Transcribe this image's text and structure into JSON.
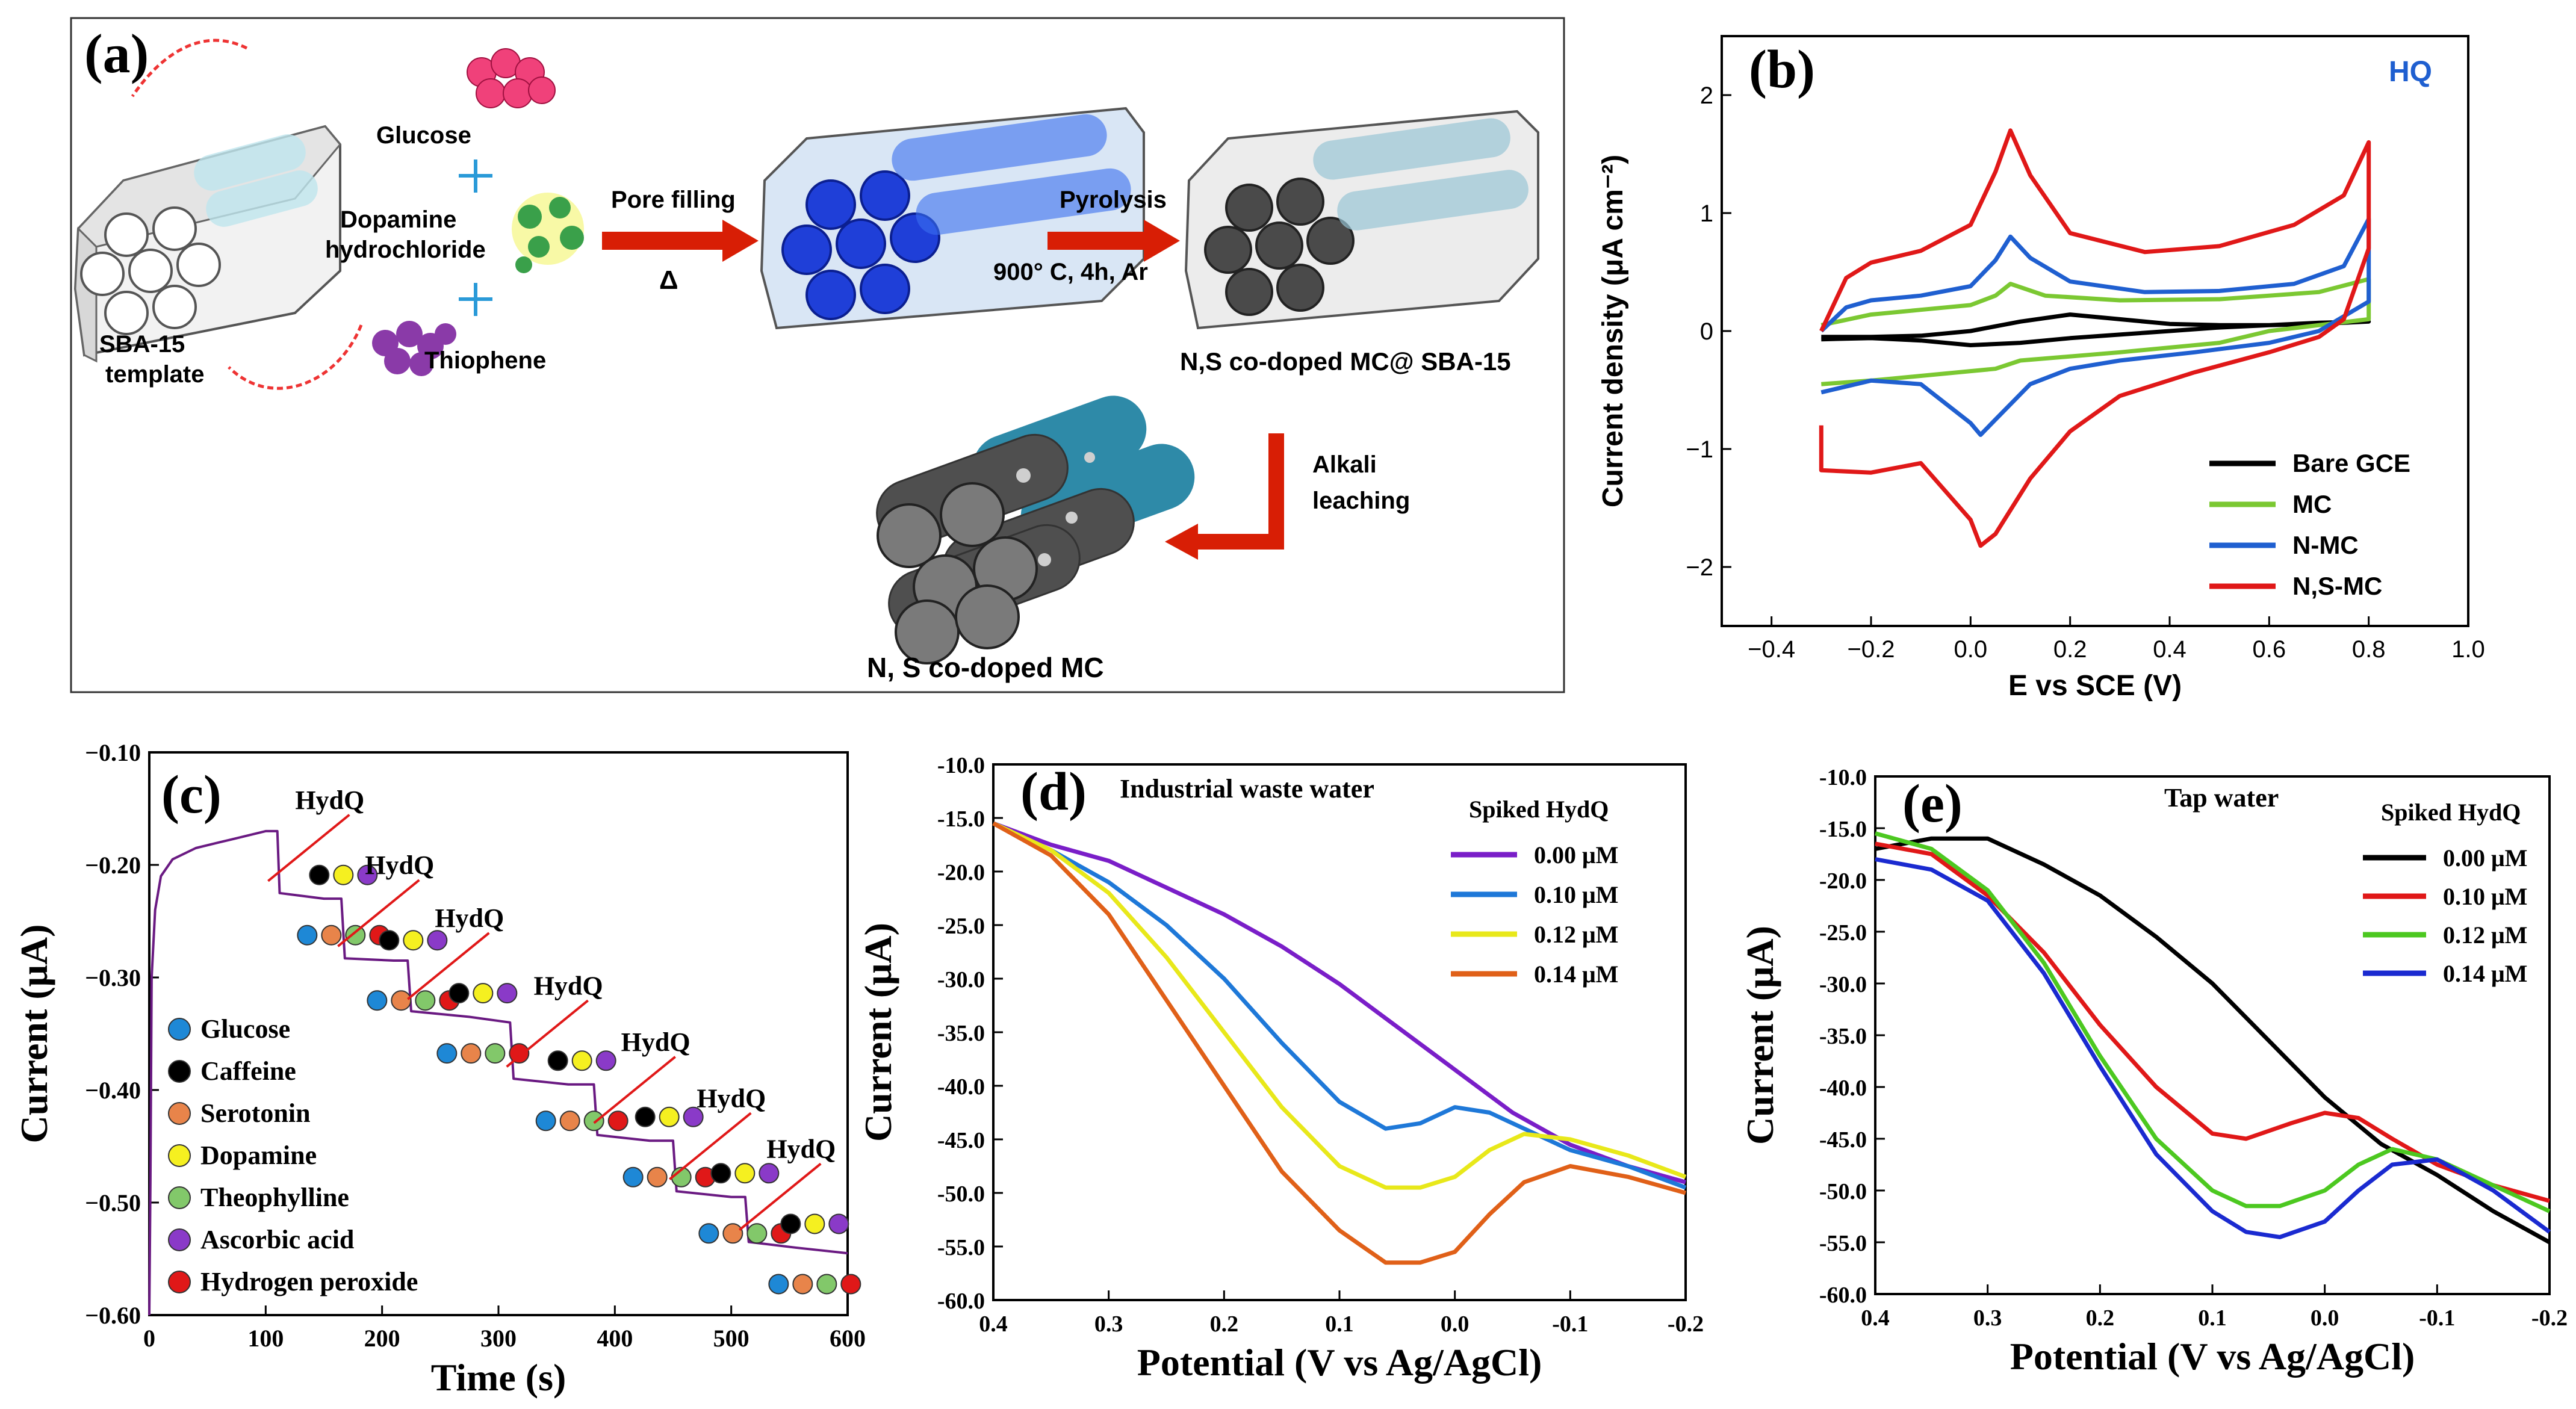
{
  "panel_a": {
    "label": "(a)",
    "glucose": "Glucose",
    "dopamine_1": "Dopamine",
    "dopamine_2": "hydrochloride",
    "thiophene": "Thiophene",
    "template_1": "SBA-15",
    "template_2": "template",
    "pore_filling": "Pore filling",
    "delta": "Δ",
    "pyrolysis": "Pyrolysis",
    "conditions": "900° C, 4h, Ar",
    "composite": "N,S co-doped MC@ SBA-15",
    "alkali_1": "Alkali",
    "alkali_2": "leaching",
    "product": "N, S co-doped MC",
    "colors": {
      "glucose": "#f0417a",
      "thiophene": "#8a3aa8",
      "dopamine": "#c8e03a",
      "pore": "#1f3fd8",
      "carbon": "#4a4a4a",
      "arrow": "#d81e05"
    }
  },
  "chart_data": [
    {
      "id": "b",
      "type": "line",
      "label": "(b)",
      "title": "HQ",
      "xlabel": "E vs SCE (V)",
      "ylabel": "Current density (μA cm⁻²)",
      "xlim": [
        -0.5,
        1.0
      ],
      "ylim": [
        -2.5,
        2.5
      ],
      "xticks": [
        -0.4,
        -0.2,
        0.0,
        0.2,
        0.4,
        0.6,
        0.8,
        1.0
      ],
      "xtick_labels": [
        "−0.4",
        "−0.2",
        "0.0",
        "0.2",
        "0.4",
        "0.6",
        "0.8",
        "1.0"
      ],
      "yticks": [
        -2,
        -1,
        0,
        1,
        2
      ],
      "ytick_labels": [
        "−2",
        "−1",
        "0",
        "1",
        "2"
      ],
      "legend_position": "bottom-right",
      "series": [
        {
          "name": "Bare GCE",
          "color": "#000000",
          "x": [
            -0.3,
            -0.2,
            -0.1,
            0.0,
            0.1,
            0.2,
            0.3,
            0.4,
            0.5,
            0.6,
            0.7,
            0.8,
            0.8,
            0.7,
            0.6,
            0.5,
            0.4,
            0.3,
            0.2,
            0.1,
            0.0,
            -0.1,
            -0.2,
            -0.3
          ],
          "y": [
            -0.05,
            -0.05,
            -0.04,
            0.0,
            0.08,
            0.14,
            0.1,
            0.06,
            0.05,
            0.05,
            0.07,
            0.08,
            0.08,
            0.06,
            0.05,
            0.03,
            0.0,
            -0.03,
            -0.06,
            -0.1,
            -0.12,
            -0.08,
            -0.06,
            -0.07
          ]
        },
        {
          "name": "MC",
          "color": "#7bc832",
          "x": [
            -0.3,
            -0.2,
            -0.1,
            0.0,
            0.05,
            0.08,
            0.15,
            0.3,
            0.5,
            0.7,
            0.8,
            0.8,
            0.7,
            0.6,
            0.5,
            0.3,
            0.1,
            0.05,
            0.0,
            -0.1,
            -0.2,
            -0.3
          ],
          "y": [
            0.05,
            0.14,
            0.18,
            0.22,
            0.3,
            0.4,
            0.3,
            0.26,
            0.27,
            0.33,
            0.44,
            0.1,
            0.05,
            0.0,
            -0.1,
            -0.18,
            -0.25,
            -0.32,
            -0.34,
            -0.38,
            -0.42,
            -0.45
          ]
        },
        {
          "name": "N-MC",
          "color": "#1f5fd0",
          "x": [
            -0.3,
            -0.25,
            -0.2,
            -0.1,
            0.0,
            0.05,
            0.08,
            0.12,
            0.2,
            0.35,
            0.5,
            0.65,
            0.75,
            0.8,
            0.8,
            0.7,
            0.6,
            0.45,
            0.3,
            0.2,
            0.12,
            0.05,
            0.02,
            0.0,
            -0.1,
            -0.2,
            -0.3
          ],
          "y": [
            0.0,
            0.2,
            0.26,
            0.3,
            0.38,
            0.6,
            0.8,
            0.62,
            0.42,
            0.33,
            0.34,
            0.4,
            0.55,
            0.95,
            0.25,
            0.0,
            -0.1,
            -0.18,
            -0.25,
            -0.32,
            -0.45,
            -0.75,
            -0.88,
            -0.78,
            -0.45,
            -0.42,
            -0.52
          ]
        },
        {
          "name": "N,S-MC",
          "color": "#e01818",
          "x": [
            -0.3,
            -0.25,
            -0.2,
            -0.1,
            0.0,
            0.05,
            0.08,
            0.12,
            0.2,
            0.35,
            0.5,
            0.65,
            0.75,
            0.8,
            0.8,
            0.75,
            0.7,
            0.6,
            0.45,
            0.3,
            0.2,
            0.12,
            0.05,
            0.02,
            0.0,
            -0.1,
            -0.2,
            -0.3,
            -0.3
          ],
          "y": [
            0.0,
            0.45,
            0.58,
            0.68,
            0.9,
            1.35,
            1.7,
            1.32,
            0.83,
            0.67,
            0.72,
            0.9,
            1.15,
            1.6,
            0.7,
            0.1,
            -0.05,
            -0.18,
            -0.35,
            -0.55,
            -0.85,
            -1.25,
            -1.72,
            -1.82,
            -1.6,
            -1.12,
            -1.2,
            -1.18,
            -0.8
          ]
        }
      ]
    },
    {
      "id": "c",
      "type": "line",
      "label": "(c)",
      "xlabel": "Time (s)",
      "ylabel": "Current (μA)",
      "xlim": [
        0,
        600
      ],
      "ylim": [
        -0.6,
        -0.1
      ],
      "xticks": [
        0,
        100,
        200,
        300,
        400,
        500,
        600
      ],
      "xtick_labels": [
        "0",
        "100",
        "200",
        "300",
        "400",
        "500",
        "600"
      ],
      "yticks": [
        -0.6,
        -0.5,
        -0.4,
        -0.3,
        -0.2,
        -0.1
      ],
      "ytick_labels": [
        "−0.60",
        "−0.50",
        "−0.40",
        "−0.30",
        "−0.20",
        "−0.10"
      ],
      "annotation": "HydQ",
      "hydq_times": [
        115,
        175,
        235,
        320,
        395,
        460,
        520
      ],
      "series": [
        {
          "name": "Current",
          "color": "#6a1a82",
          "x": [
            0,
            1,
            2,
            5,
            10,
            20,
            40,
            60,
            80,
            100,
            110,
            112,
            150,
            165,
            168,
            210,
            222,
            225,
            275,
            310,
            313,
            360,
            382,
            385,
            430,
            450,
            453,
            500,
            512,
            515,
            555,
            600
          ],
          "y": [
            -0.6,
            -0.48,
            -0.3,
            -0.24,
            -0.21,
            -0.195,
            -0.185,
            -0.18,
            -0.175,
            -0.17,
            -0.17,
            -0.225,
            -0.23,
            -0.23,
            -0.283,
            -0.285,
            -0.285,
            -0.33,
            -0.335,
            -0.34,
            -0.39,
            -0.395,
            -0.395,
            -0.44,
            -0.445,
            -0.445,
            -0.49,
            -0.495,
            -0.495,
            -0.535,
            -0.54,
            -0.545
          ]
        }
      ],
      "legend_position": "bottom-left",
      "legend": [
        {
          "name": "Glucose",
          "color": "#1e88d6"
        },
        {
          "name": "Caffeine",
          "color": "#000000"
        },
        {
          "name": "Serotonin",
          "color": "#e8844a"
        },
        {
          "name": "Dopamine",
          "color": "#f5f020"
        },
        {
          "name": "Theophylline",
          "color": "#82c86a"
        },
        {
          "name": "Ascorbic acid",
          "color": "#8a3ac8"
        },
        {
          "name": "Hydrogen peroxide",
          "color": "#e01818"
        }
      ]
    },
    {
      "id": "d",
      "type": "line",
      "label": "(d)",
      "title": "Industrial waste water",
      "legend_title": "Spiked HydQ",
      "xlabel": "Potential (V vs Ag/AgCl)",
      "ylabel": "Current (μA)",
      "xlim": [
        0.4,
        -0.2
      ],
      "ylim": [
        -60,
        -10
      ],
      "xticks": [
        0.4,
        0.3,
        0.2,
        0.1,
        0.0,
        -0.1,
        -0.2
      ],
      "xtick_labels": [
        "0.4",
        "0.3",
        "0.2",
        "0.1",
        "0.0",
        "-0.1",
        "-0.2"
      ],
      "yticks": [
        -60,
        -55,
        -50,
        -45,
        -40,
        -35,
        -30,
        -25,
        -20,
        -15,
        -10
      ],
      "ytick_labels": [
        "-60.0",
        "-55.0",
        "-50.0",
        "-45.0",
        "-40.0",
        "-35.0",
        "-30.0",
        "-25.0",
        "-20.0",
        "-15.0",
        "-10.0"
      ],
      "legend_position": "top-right",
      "series": [
        {
          "name": "0.00 μM",
          "color": "#7a1ec8",
          "x": [
            0.4,
            0.35,
            0.3,
            0.25,
            0.2,
            0.15,
            0.1,
            0.05,
            0.0,
            -0.05,
            -0.1,
            -0.15,
            -0.2
          ],
          "y": [
            -15.5,
            -17.5,
            -19,
            -21.5,
            -24,
            -27,
            -30.5,
            -34.5,
            -38.5,
            -42.5,
            -45.5,
            -47.5,
            -49
          ]
        },
        {
          "name": "0.10 μM",
          "color": "#1e78d8",
          "x": [
            0.4,
            0.35,
            0.3,
            0.25,
            0.2,
            0.15,
            0.1,
            0.06,
            0.03,
            0.0,
            -0.03,
            -0.06,
            -0.1,
            -0.15,
            -0.2
          ],
          "y": [
            -15.5,
            -18,
            -21,
            -25,
            -30,
            -36,
            -41.5,
            -44,
            -43.5,
            -42,
            -42.5,
            -44,
            -46,
            -47.5,
            -49.5
          ]
        },
        {
          "name": "0.12 μM",
          "color": "#e8e81a",
          "x": [
            0.4,
            0.35,
            0.3,
            0.25,
            0.2,
            0.15,
            0.1,
            0.06,
            0.03,
            0.0,
            -0.03,
            -0.06,
            -0.1,
            -0.15,
            -0.2
          ],
          "y": [
            -15.5,
            -18,
            -22,
            -28,
            -35,
            -42,
            -47.5,
            -49.5,
            -49.5,
            -48.5,
            -46,
            -44.5,
            -45,
            -46.5,
            -48.5
          ]
        },
        {
          "name": "0.14 μM",
          "color": "#e06018",
          "x": [
            0.4,
            0.35,
            0.3,
            0.25,
            0.2,
            0.15,
            0.1,
            0.06,
            0.03,
            0.0,
            -0.03,
            -0.06,
            -0.1,
            -0.15,
            -0.2
          ],
          "y": [
            -15.5,
            -18.5,
            -24,
            -32,
            -40,
            -48,
            -53.5,
            -56.5,
            -56.5,
            -55.5,
            -52,
            -49,
            -47.5,
            -48.5,
            -50
          ]
        }
      ]
    },
    {
      "id": "e",
      "type": "line",
      "label": "(e)",
      "title": "Tap water",
      "legend_title": "Spiked HydQ",
      "xlabel": "Potential (V vs Ag/AgCl)",
      "ylabel": "Current (μA)",
      "xlim": [
        0.4,
        -0.2
      ],
      "ylim": [
        -60,
        -10
      ],
      "xticks": [
        0.4,
        0.3,
        0.2,
        0.1,
        0.0,
        -0.1,
        -0.2
      ],
      "xtick_labels": [
        "0.4",
        "0.3",
        "0.2",
        "0.1",
        "0.0",
        "-0.1",
        "-0.2"
      ],
      "yticks": [
        -60,
        -55,
        -50,
        -45,
        -40,
        -35,
        -30,
        -25,
        -20,
        -15,
        -10
      ],
      "ytick_labels": [
        "-60.0",
        "-55.0",
        "-50.0",
        "-45.0",
        "-40.0",
        "-35.0",
        "-30.0",
        "-25.0",
        "-20.0",
        "-15.0",
        "-10.0"
      ],
      "legend_position": "top-right",
      "series": [
        {
          "name": "0.00 μM",
          "color": "#000000",
          "x": [
            0.4,
            0.35,
            0.3,
            0.25,
            0.2,
            0.15,
            0.1,
            0.05,
            0.0,
            -0.05,
            -0.1,
            -0.15,
            -0.2
          ],
          "y": [
            -17,
            -16,
            -16,
            -18.5,
            -21.5,
            -25.5,
            -30,
            -35.5,
            -41,
            -45.5,
            -48.5,
            -52,
            -55
          ]
        },
        {
          "name": "0.10 μM",
          "color": "#e01818",
          "x": [
            0.4,
            0.35,
            0.3,
            0.25,
            0.2,
            0.15,
            0.1,
            0.07,
            0.03,
            0.0,
            -0.03,
            -0.06,
            -0.1,
            -0.15,
            -0.2
          ],
          "y": [
            -16.5,
            -17.5,
            -21.5,
            -27,
            -34,
            -40,
            -44.5,
            -45,
            -43.5,
            -42.5,
            -43,
            -45,
            -47.5,
            -49.5,
            -51
          ]
        },
        {
          "name": "0.12 μM",
          "color": "#4cc820",
          "x": [
            0.4,
            0.35,
            0.3,
            0.25,
            0.2,
            0.15,
            0.1,
            0.07,
            0.04,
            0.0,
            -0.03,
            -0.06,
            -0.1,
            -0.15,
            -0.2
          ],
          "y": [
            -15.5,
            -17,
            -21,
            -28,
            -37,
            -45,
            -50,
            -51.5,
            -51.5,
            -50,
            -47.5,
            -46,
            -47,
            -49.5,
            -52
          ]
        },
        {
          "name": "0.14 μM",
          "color": "#1a2ad0",
          "x": [
            0.4,
            0.35,
            0.3,
            0.25,
            0.2,
            0.15,
            0.1,
            0.07,
            0.04,
            0.0,
            -0.03,
            -0.06,
            -0.1,
            -0.15,
            -0.2
          ],
          "y": [
            -18,
            -19,
            -22,
            -29,
            -38,
            -46.5,
            -52,
            -54,
            -54.5,
            -53,
            -50,
            -47.5,
            -47,
            -50,
            -54
          ]
        }
      ]
    }
  ]
}
